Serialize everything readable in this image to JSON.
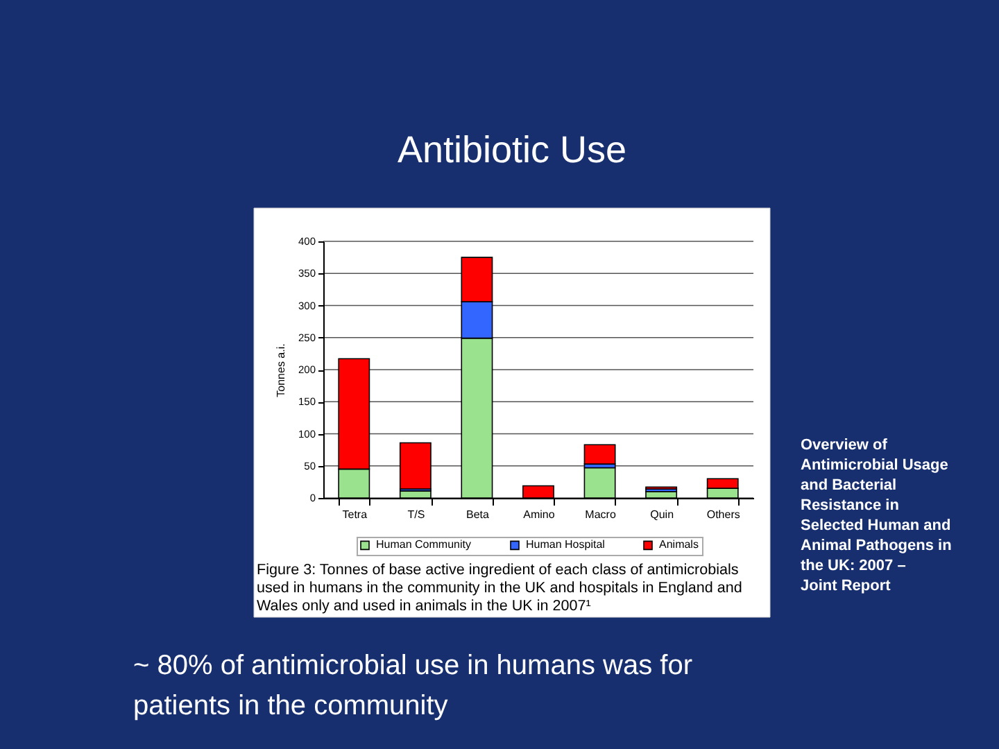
{
  "chart_data": {
    "type": "bar",
    "title": "Antibiotic Use",
    "ylabel": "Tonnes a.i.",
    "categories": [
      "Tetra",
      "T/S",
      "Beta",
      "Amino",
      "Macro",
      "Quin",
      "Others"
    ],
    "stacked": true,
    "series": [
      {
        "name": "Human Community",
        "color": "#9be28f",
        "values": [
          45,
          11,
          249,
          0,
          47,
          10,
          15
        ]
      },
      {
        "name": "Human Hospital",
        "color": "#3366ff",
        "values": [
          0,
          3,
          57,
          0,
          6,
          4,
          0
        ]
      },
      {
        "name": "Animals",
        "color": "#ff0000",
        "values": [
          172,
          72,
          69,
          19,
          30,
          3,
          15
        ]
      }
    ],
    "ylim": [
      0,
      400
    ],
    "yticks": [
      0,
      50,
      100,
      150,
      200,
      250,
      300,
      350,
      400
    ],
    "grid": "y",
    "legend": "bottom",
    "annotations": [
      "Figure 3: Tonnes of base active ingredient of each class of antimicrobials used in humans in the community in the UK and hospitals in England and Wales only and used in animals in the UK in 2007¹",
      "Overview of Antimicrobial Usage and Bacterial Resistance in Selected Human and Animal Pathogens in the UK: 2007 – Joint Report",
      "~ 80% of antimicrobial use in humans was for patients in the community"
    ]
  }
}
